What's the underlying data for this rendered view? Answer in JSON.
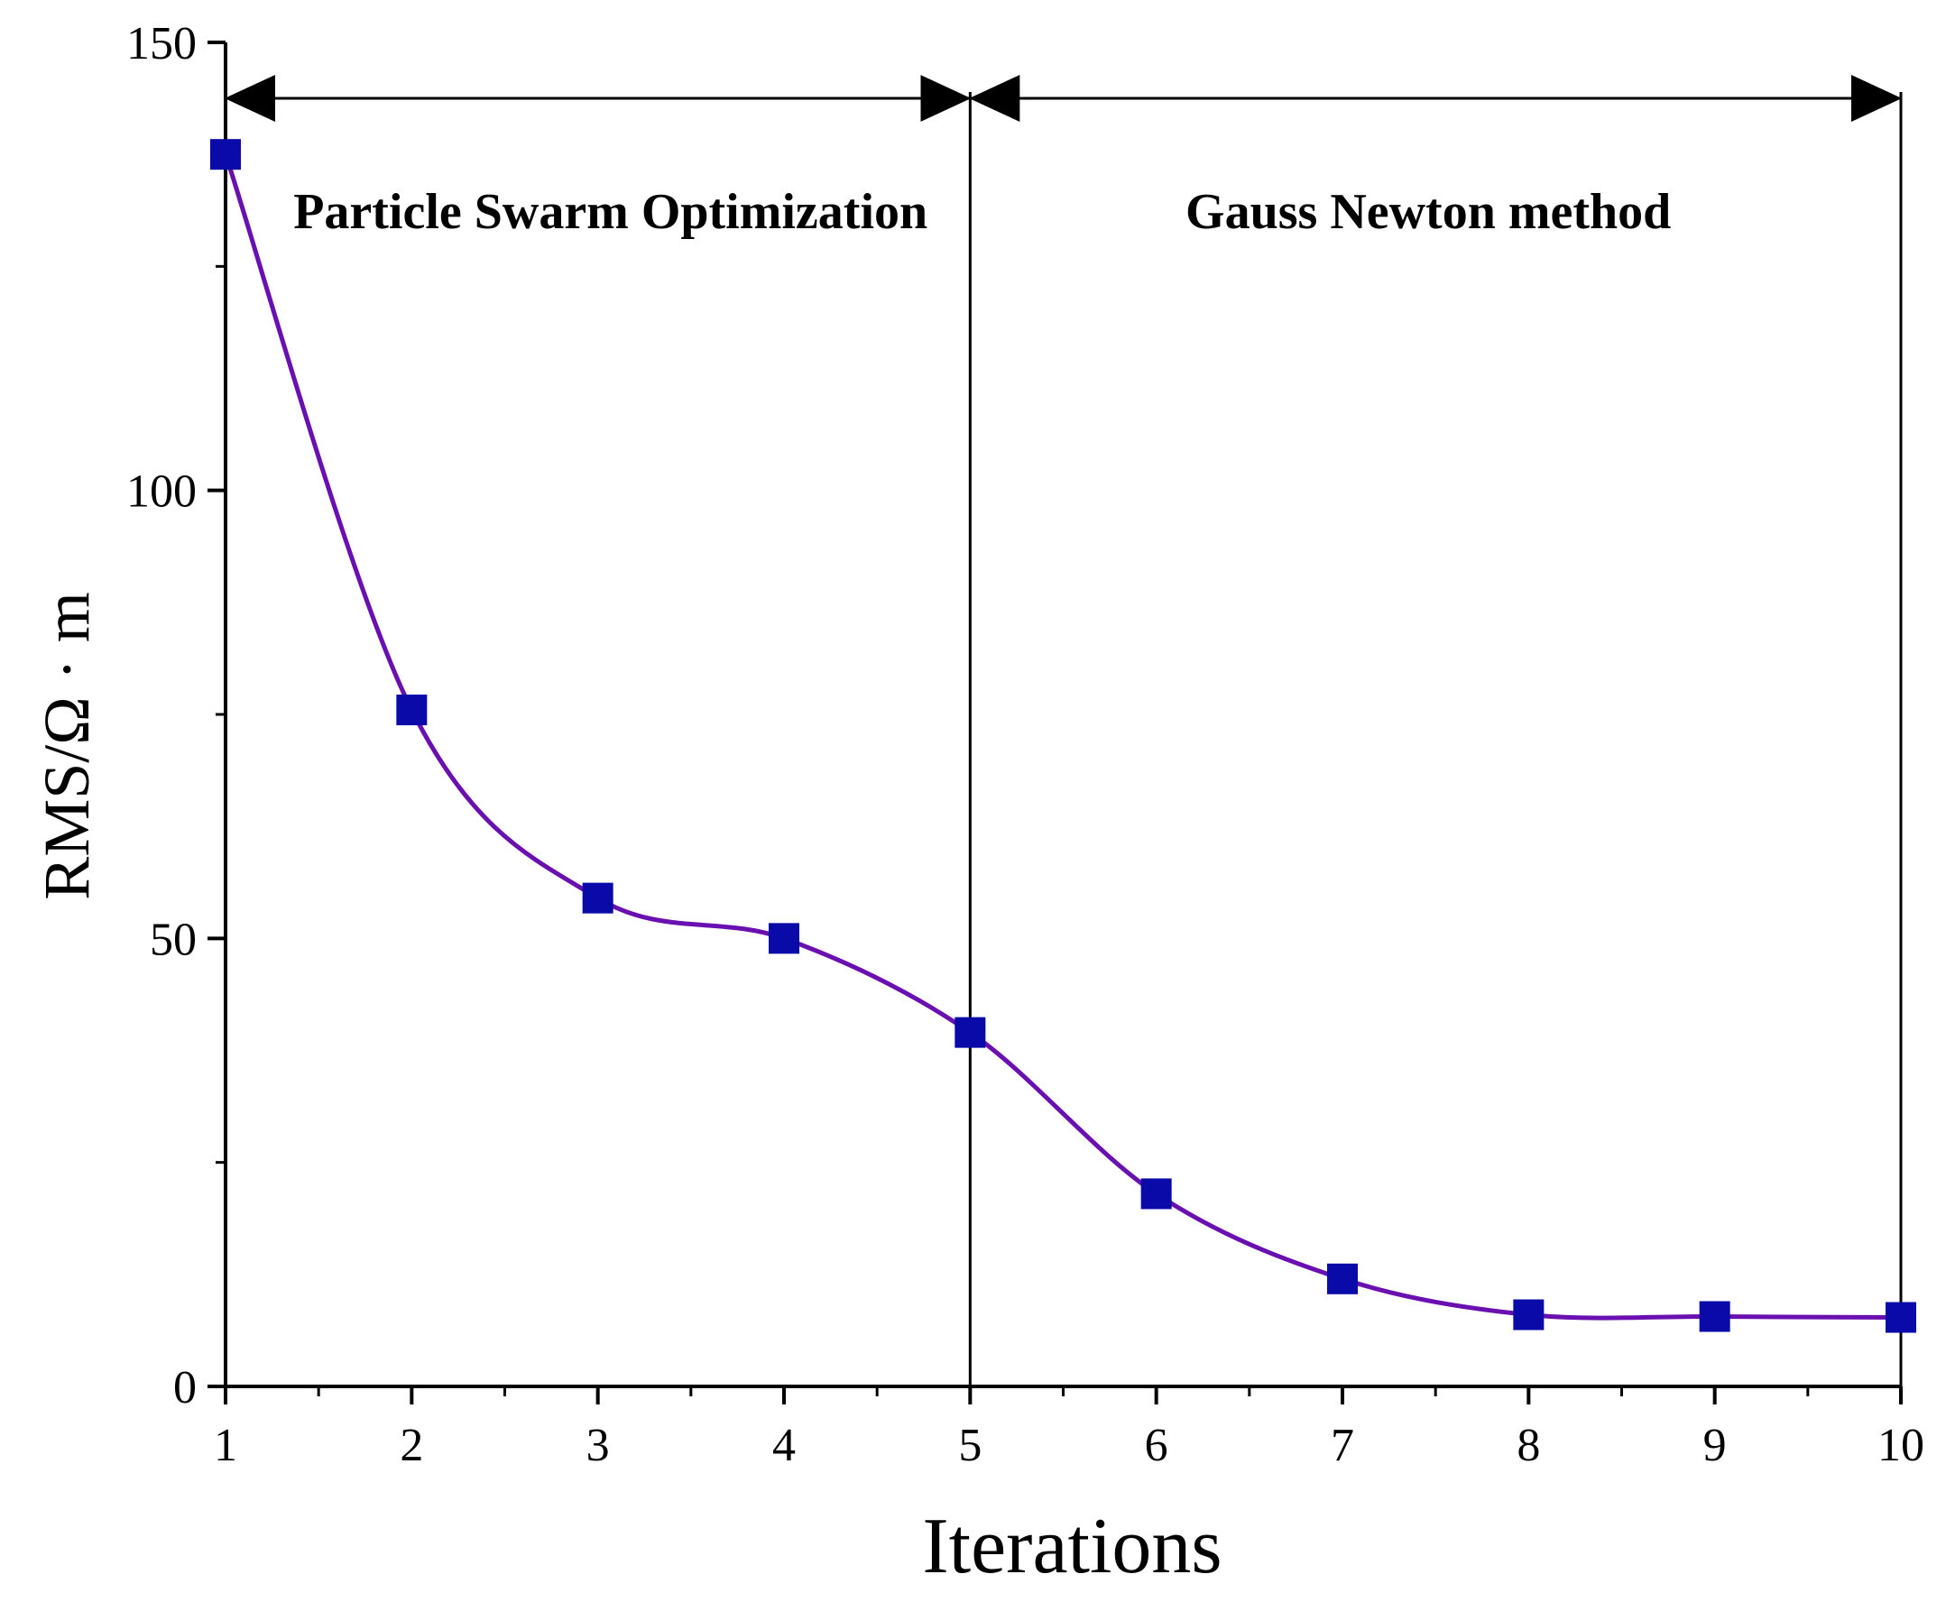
{
  "chart_data": {
    "type": "line",
    "title": "",
    "xlabel": "Iterations",
    "ylabel": "RMS/Ω · m",
    "xlim": [
      1,
      10
    ],
    "ylim": [
      0,
      150
    ],
    "x_ticks": [
      "1",
      "2",
      "3",
      "4",
      "5",
      "6",
      "7",
      "8",
      "9",
      "10"
    ],
    "y_ticks": [
      "0",
      "50",
      "100",
      "150"
    ],
    "grid": false,
    "legend": "none",
    "series": [
      {
        "x": [
          1,
          2,
          3,
          4,
          5,
          6,
          7,
          8,
          9,
          10
        ],
        "values": [
          137.5,
          75.5,
          54.5,
          50,
          39.5,
          21.5,
          12,
          8,
          7.8,
          7.7
        ],
        "line_color": "#6a0fb0",
        "marker": "square",
        "marker_color": "#0a0aa8"
      }
    ],
    "phases": [
      {
        "label": "Particle Swarm Optimization",
        "x_start": 1,
        "x_end": 5
      },
      {
        "label": "Gauss Newton method",
        "x_start": 5,
        "x_end": 10
      }
    ],
    "divider_x": 5
  }
}
